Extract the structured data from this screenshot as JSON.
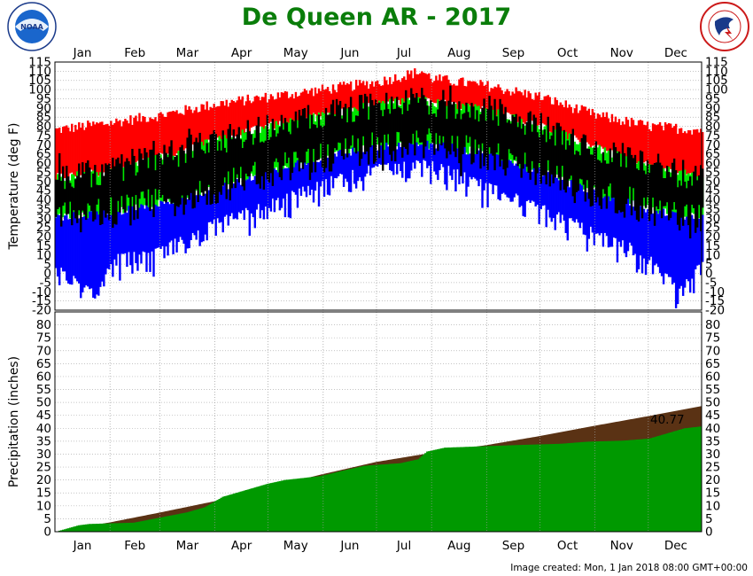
{
  "title": "De Queen AR - 2017",
  "footer": "Image created: Mon, 1 Jan 2018 08:00 GMT+00:00",
  "logos": {
    "left": "noaa-logo",
    "right": "nws-logo"
  },
  "colors": {
    "title": "#0a7d0a",
    "record_high": "#ff0000",
    "normal_high": "#00e600",
    "normal_low": "#0000ff",
    "actual_range": "#000000",
    "precip_normal": "#5a3214",
    "precip_observed": "#009900"
  },
  "chart_data": [
    {
      "type": "area",
      "panel": "temperature",
      "ylabel": "Temperature (deg F)",
      "ylim": [
        -20,
        115
      ],
      "yticks": [
        115,
        110,
        105,
        100,
        95,
        90,
        85,
        80,
        75,
        70,
        65,
        60,
        55,
        50,
        45,
        40,
        35,
        30,
        25,
        20,
        15,
        10,
        5,
        0,
        -5,
        -10,
        -15,
        -20
      ],
      "categories": [
        "Jan",
        "Feb",
        "Mar",
        "Apr",
        "May",
        "Jun",
        "Jul",
        "Aug",
        "Sep",
        "Oct",
        "Nov",
        "Dec"
      ],
      "grid": true,
      "x_domain": [
        1,
        365
      ],
      "series": [
        {
          "values_by_day_anchor": [
            [
              1,
              78
            ],
            [
              32,
              82
            ],
            [
              60,
              86
            ],
            [
              91,
              92
            ],
            [
              121,
              96
            ],
            [
              152,
              100
            ],
            [
              182,
              104
            ],
            [
              207,
              110
            ],
            [
              213,
              106
            ],
            [
              244,
              102
            ],
            [
              274,
              96
            ],
            [
              305,
              86
            ],
            [
              335,
              80
            ],
            [
              365,
              78
            ]
          ]
        },
        {
          "values_by_day_anchor": [
            [
              1,
              52
            ],
            [
              32,
              56
            ],
            [
              60,
              63
            ],
            [
              91,
              72
            ],
            [
              121,
              80
            ],
            [
              152,
              86
            ],
            [
              182,
              92
            ],
            [
              207,
              94
            ],
            [
              213,
              93
            ],
            [
              244,
              89
            ],
            [
              274,
              80
            ],
            [
              305,
              68
            ],
            [
              335,
              58
            ],
            [
              365,
              52
            ]
          ]
        },
        {
          "values_by_day_anchor": [
            [
              1,
              30
            ],
            [
              32,
              33
            ],
            [
              60,
              38
            ],
            [
              91,
              46
            ],
            [
              121,
              55
            ],
            [
              152,
              63
            ],
            [
              182,
              69
            ],
            [
              207,
              70
            ],
            [
              213,
              70
            ],
            [
              244,
              65
            ],
            [
              274,
              55
            ],
            [
              305,
              44
            ],
            [
              335,
              35
            ],
            [
              365,
              30
            ]
          ]
        },
        {
          "values_by_day_anchor": [
            [
              1,
              5
            ],
            [
              25,
              -10
            ],
            [
              32,
              10
            ],
            [
              60,
              15
            ],
            [
              91,
              30
            ],
            [
              121,
              40
            ],
            [
              152,
              52
            ],
            [
              182,
              60
            ],
            [
              207,
              62
            ],
            [
              213,
              62
            ],
            [
              244,
              50
            ],
            [
              274,
              38
            ],
            [
              305,
              25
            ],
            [
              335,
              12
            ],
            [
              350,
              -5
            ],
            [
              365,
              8
            ]
          ]
        }
      ]
    },
    {
      "type": "area",
      "panel": "precipitation",
      "ylabel": "Precipitation (inches)",
      "ylim": [
        0,
        85
      ],
      "yticks": [
        80,
        75,
        70,
        65,
        60,
        55,
        50,
        45,
        40,
        35,
        30,
        25,
        20,
        15,
        10,
        5,
        0
      ],
      "categories": [
        "Jan",
        "Feb",
        "Mar",
        "Apr",
        "May",
        "Jun",
        "Jul",
        "Aug",
        "Sep",
        "Oct",
        "Nov",
        "Dec"
      ],
      "grid": true,
      "x_domain": [
        1,
        365
      ],
      "annotation": "40.77",
      "series": [
        {
          "cumulative_by_day": [
            [
              1,
              0
            ],
            [
              32,
              3.6
            ],
            [
              60,
              7.4
            ],
            [
              91,
              11.8
            ],
            [
              121,
              17.0
            ],
            [
              152,
              22.3
            ],
            [
              182,
              27.0
            ],
            [
              213,
              30.5
            ],
            [
              244,
              33.5
            ],
            [
              274,
              37.0
            ],
            [
              305,
              41.0
            ],
            [
              335,
              44.7
            ],
            [
              365,
              48.6
            ]
          ]
        },
        {
          "cumulative_by_day": [
            [
              1,
              0
            ],
            [
              14,
              2.5
            ],
            [
              20,
              3.0
            ],
            [
              45,
              3.5
            ],
            [
              60,
              5.5
            ],
            [
              75,
              7.5
            ],
            [
              85,
              9.5
            ],
            [
              95,
              13.5
            ],
            [
              105,
              15.5
            ],
            [
              120,
              18.5
            ],
            [
              130,
              20.0
            ],
            [
              150,
              21.5
            ],
            [
              165,
              24.0
            ],
            [
              175,
              25.5
            ],
            [
              195,
              26.5
            ],
            [
              205,
              28.0
            ],
            [
              210,
              31.0
            ],
            [
              220,
              32.5
            ],
            [
              260,
              33.5
            ],
            [
              285,
              34.0
            ],
            [
              300,
              34.8
            ],
            [
              320,
              35.2
            ],
            [
              335,
              36.0
            ],
            [
              345,
              38.0
            ],
            [
              355,
              40.0
            ],
            [
              365,
              40.77
            ]
          ]
        }
      ]
    }
  ]
}
